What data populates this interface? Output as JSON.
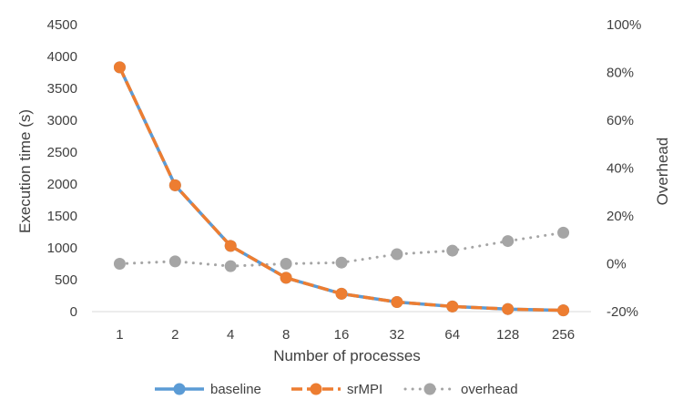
{
  "chart_data": {
    "type": "line",
    "categories": [
      "1",
      "2",
      "4",
      "8",
      "16",
      "32",
      "64",
      "128",
      "256"
    ],
    "xlabel": "Number of processes",
    "ylabel": "Execution time (s)",
    "y2label": "Overhead",
    "ylim": [
      0,
      4500
    ],
    "yticks": [
      0,
      500,
      1000,
      1500,
      2000,
      2500,
      3000,
      3500,
      4000,
      4500
    ],
    "y2lim": [
      -20,
      100
    ],
    "y2ticks": [
      -20,
      0,
      20,
      40,
      60,
      80,
      100
    ],
    "y2tick_labels": [
      "-20%",
      "0%",
      "20%",
      "40%",
      "60%",
      "80%",
      "100%"
    ],
    "grid": false,
    "legend_position": "bottom",
    "series": [
      {
        "name": "baseline",
        "axis": "left",
        "style": "solid",
        "color": "#5B9BD5",
        "values": [
          3830,
          1980,
          1030,
          530,
          280,
          150,
          80,
          40,
          20
        ]
      },
      {
        "name": "srMPI",
        "axis": "left",
        "style": "dashed",
        "color": "#ED7D31",
        "values": [
          3830,
          1980,
          1030,
          530,
          280,
          150,
          80,
          40,
          20
        ]
      },
      {
        "name": "overhead",
        "axis": "right",
        "style": "dotted",
        "color": "#A5A5A5",
        "values": [
          0,
          1,
          -1,
          0,
          0.5,
          4,
          5.5,
          9.5,
          13
        ]
      }
    ]
  }
}
